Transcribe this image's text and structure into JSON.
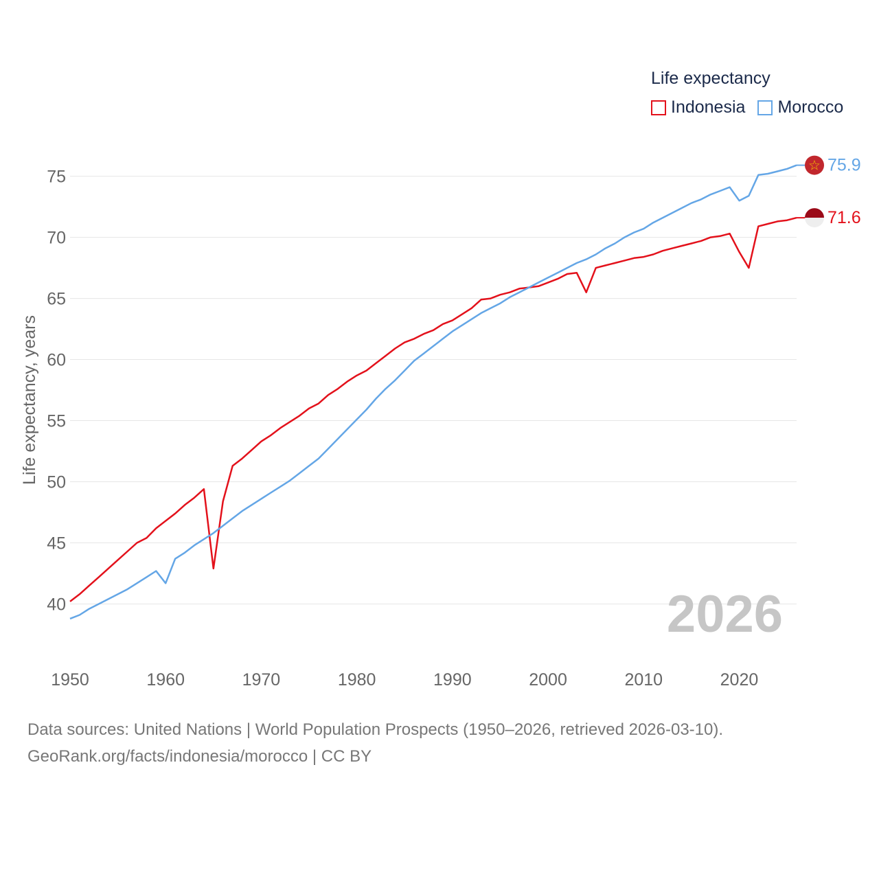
{
  "legend": {
    "title": "Life expectancy",
    "items": [
      {
        "label": "Indonesia",
        "color": "#e3111b"
      },
      {
        "label": "Morocco",
        "color": "#64a6e6"
      }
    ]
  },
  "footer": {
    "line1": "Data sources: United Nations | World Population Prospects (1950–2026, retrieved 2026-03-10).",
    "line2": "GeoRank.org/facts/indonesia/morocco | CC BY"
  },
  "chart_data": {
    "type": "line",
    "title": "Life expectancy",
    "ylabel": "Life expectancy, years",
    "xlabel": "",
    "xlim": [
      1950,
      2026
    ],
    "ylim": [
      37.5,
      77
    ],
    "x_ticks": [
      1950,
      1960,
      1970,
      1980,
      1990,
      2000,
      2010,
      2020
    ],
    "y_ticks": [
      40,
      45,
      50,
      55,
      60,
      65,
      70,
      75
    ],
    "year_watermark": "2026",
    "series": [
      {
        "name": "Indonesia",
        "color": "#e3111b",
        "end_label": "71.6",
        "end_value": 71.6,
        "x": [
          1950,
          1951,
          1952,
          1953,
          1954,
          1955,
          1956,
          1957,
          1958,
          1959,
          1960,
          1961,
          1962,
          1963,
          1964,
          1965,
          1966,
          1967,
          1968,
          1969,
          1970,
          1971,
          1972,
          1973,
          1974,
          1975,
          1976,
          1977,
          1978,
          1979,
          1980,
          1981,
          1982,
          1983,
          1984,
          1985,
          1986,
          1987,
          1988,
          1989,
          1990,
          1991,
          1992,
          1993,
          1994,
          1995,
          1996,
          1997,
          1998,
          1999,
          2000,
          2001,
          2002,
          2003,
          2004,
          2005,
          2006,
          2007,
          2008,
          2009,
          2010,
          2011,
          2012,
          2013,
          2014,
          2015,
          2016,
          2017,
          2018,
          2019,
          2020,
          2021,
          2022,
          2023,
          2024,
          2025,
          2026
        ],
        "values": [
          40.2,
          40.8,
          41.5,
          42.2,
          42.9,
          43.6,
          44.3,
          45.0,
          45.4,
          46.2,
          46.8,
          47.4,
          48.1,
          48.7,
          49.4,
          42.9,
          48.4,
          51.3,
          51.9,
          52.6,
          53.3,
          53.8,
          54.4,
          54.9,
          55.4,
          56.0,
          56.4,
          57.1,
          57.6,
          58.2,
          58.7,
          59.1,
          59.7,
          60.3,
          60.9,
          61.4,
          61.7,
          62.1,
          62.4,
          62.9,
          63.2,
          63.7,
          64.2,
          64.9,
          65.0,
          65.3,
          65.5,
          65.8,
          65.9,
          66.0,
          66.3,
          66.6,
          67.0,
          67.1,
          65.5,
          67.5,
          67.7,
          67.9,
          68.1,
          68.3,
          68.4,
          68.6,
          68.9,
          69.1,
          69.3,
          69.5,
          69.7,
          70.0,
          70.1,
          70.3,
          68.8,
          67.5,
          70.9,
          71.1,
          71.3,
          71.4,
          71.6
        ]
      },
      {
        "name": "Morocco",
        "color": "#64a6e6",
        "end_label": "75.9",
        "end_value": 75.9,
        "x": [
          1950,
          1951,
          1952,
          1953,
          1954,
          1955,
          1956,
          1957,
          1958,
          1959,
          1960,
          1961,
          1962,
          1963,
          1964,
          1965,
          1966,
          1967,
          1968,
          1969,
          1970,
          1971,
          1972,
          1973,
          1974,
          1975,
          1976,
          1977,
          1978,
          1979,
          1980,
          1981,
          1982,
          1983,
          1984,
          1985,
          1986,
          1987,
          1988,
          1989,
          1990,
          1991,
          1992,
          1993,
          1994,
          1995,
          1996,
          1997,
          1998,
          1999,
          2000,
          2001,
          2002,
          2003,
          2004,
          2005,
          2006,
          2007,
          2008,
          2009,
          2010,
          2011,
          2012,
          2013,
          2014,
          2015,
          2016,
          2017,
          2018,
          2019,
          2020,
          2021,
          2022,
          2023,
          2024,
          2025,
          2026
        ],
        "values": [
          38.8,
          39.1,
          39.6,
          40.0,
          40.4,
          40.8,
          41.2,
          41.7,
          42.2,
          42.7,
          41.7,
          43.7,
          44.2,
          44.8,
          45.3,
          45.8,
          46.4,
          47.0,
          47.6,
          48.1,
          48.6,
          49.1,
          49.6,
          50.1,
          50.7,
          51.3,
          51.9,
          52.7,
          53.5,
          54.3,
          55.1,
          55.9,
          56.8,
          57.6,
          58.3,
          59.1,
          59.9,
          60.5,
          61.1,
          61.7,
          62.3,
          62.8,
          63.3,
          63.8,
          64.2,
          64.6,
          65.1,
          65.5,
          65.9,
          66.3,
          66.7,
          67.1,
          67.5,
          67.9,
          68.2,
          68.6,
          69.1,
          69.5,
          70.0,
          70.4,
          70.7,
          71.2,
          71.6,
          72.0,
          72.4,
          72.8,
          73.1,
          73.5,
          73.8,
          74.1,
          73.0,
          73.4,
          75.1,
          75.2,
          75.4,
          75.6,
          75.9
        ]
      }
    ]
  }
}
